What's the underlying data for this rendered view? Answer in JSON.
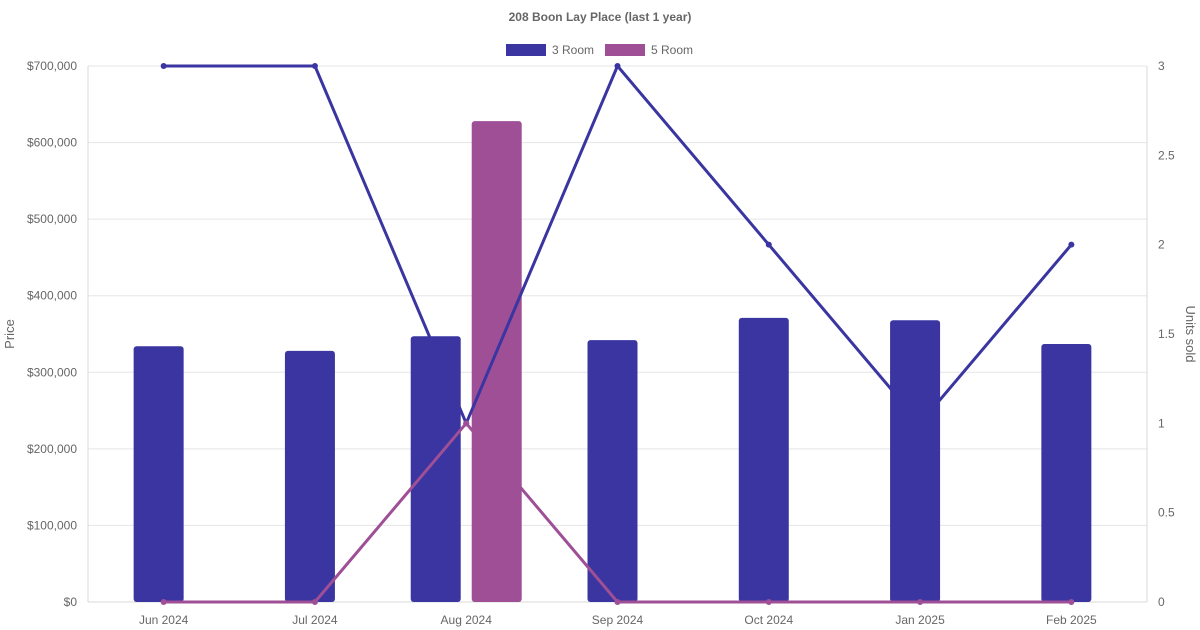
{
  "chart_data": {
    "type": "bar",
    "title": "208 Boon Lay Place (last 1 year)",
    "categories": [
      "Jun 2024",
      "Jul 2024",
      "Aug 2024",
      "Sep 2024",
      "Oct 2024",
      "Jan 2025",
      "Feb 2025"
    ],
    "ylabel": "Price",
    "y2label": "Units sold",
    "ylim": [
      0,
      700000
    ],
    "y2lim": [
      0,
      3
    ],
    "yticks": [
      "$0",
      "$100,000",
      "$200,000",
      "$300,000",
      "$400,000",
      "$500,000",
      "$600,000",
      "$700,000"
    ],
    "y2ticks": [
      "0",
      "0.5",
      "1",
      "1.5",
      "2",
      "2.5",
      "3"
    ],
    "legend": [
      "3 Room",
      "5 Room"
    ],
    "legend_position": "top-center",
    "grid": true,
    "bar_series": [
      {
        "name": "3 Room",
        "color": "#3a35a0",
        "values": [
          334000,
          328000,
          347000,
          342000,
          371000,
          368000,
          337000
        ]
      },
      {
        "name": "5 Room",
        "color": "#9e4f96",
        "values": [
          null,
          null,
          628000,
          null,
          null,
          null,
          null
        ]
      }
    ],
    "line_series": [
      {
        "name": "3 Room",
        "color": "#3a35a0",
        "values": [
          3,
          3,
          1,
          3,
          2,
          1,
          2
        ]
      },
      {
        "name": "5 Room",
        "color": "#9e4f96",
        "values": [
          0,
          0,
          1,
          0,
          0,
          0,
          0
        ]
      }
    ]
  }
}
